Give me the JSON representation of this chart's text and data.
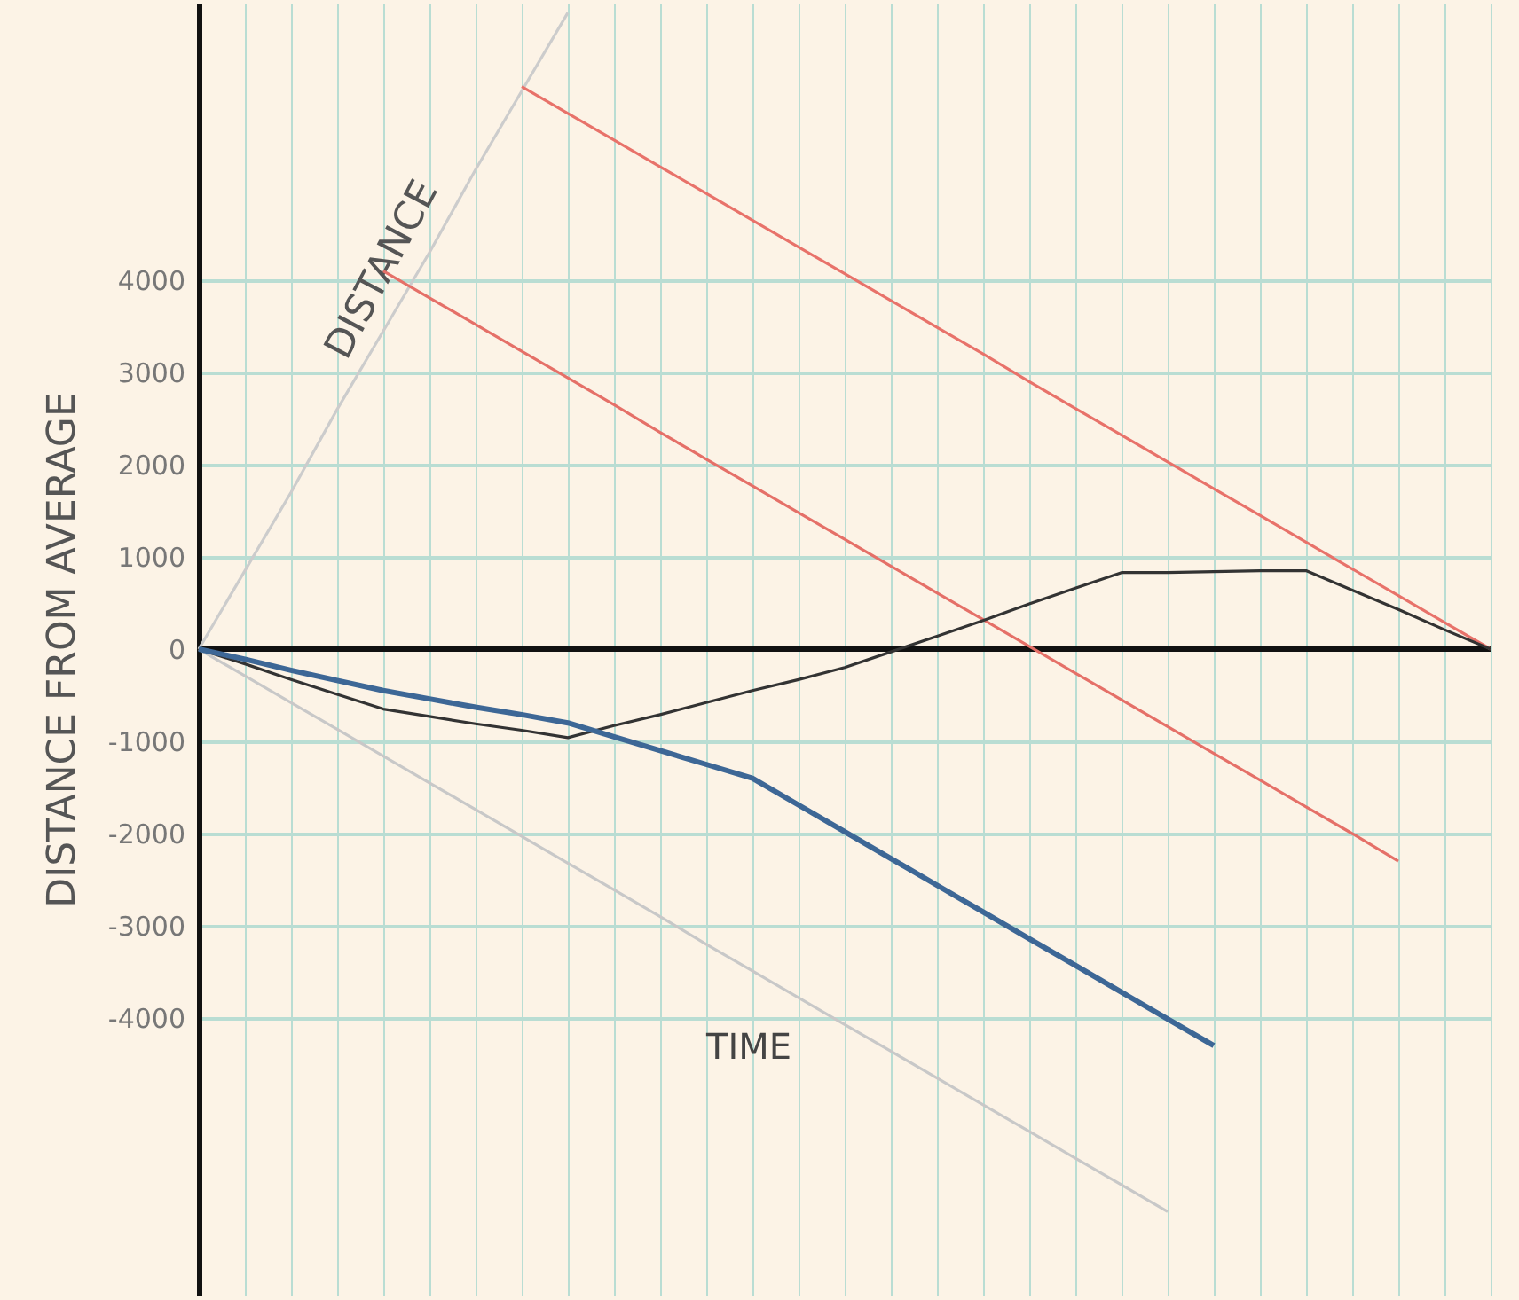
{
  "chart_data": {
    "type": "line",
    "xlabel": "TIME",
    "ylabel": "DISTANCE FROM AVERAGE",
    "categories": [
      null,
      null,
      null,
      null,
      null,
      null,
      null,
      null,
      null,
      null,
      null,
      null,
      null,
      null,
      null,
      null,
      null,
      null,
      null,
      null,
      null,
      null,
      null,
      null,
      null,
      null,
      null,
      null,
      null
    ],
    "ylim": [
      -7000,
      7000
    ],
    "yticks": [
      -4000,
      -3000,
      -2000,
      -1000,
      0,
      1000,
      2000,
      3000,
      4000
    ],
    "grid": true,
    "ref_lines": [
      {
        "axis": "y",
        "value": 0,
        "color": "#111111"
      }
    ],
    "series": [
      {
        "name": "DISTANCE",
        "color": "#cccccc",
        "values": [
          0,
          850,
          1700,
          2600,
          3450,
          4300,
          5200,
          6050,
          6900,
          null,
          null,
          null,
          null,
          null,
          null,
          null,
          null,
          null,
          null,
          null,
          null,
          null,
          null,
          null,
          null,
          null,
          null,
          null,
          null
        ]
      },
      {
        "color": "#c8c8c8",
        "values": [
          0,
          -290,
          -580,
          -870,
          -1160,
          -1450,
          -1740,
          -2030,
          -2320,
          -2610,
          -2900,
          -3200,
          -3490,
          -3780,
          -4070,
          -4360,
          -4650,
          -4940,
          -5230,
          -5520,
          -5810,
          -6100,
          null,
          null,
          null,
          null,
          null,
          null,
          null
        ]
      },
      {
        "color": "#e8726a",
        "values": [
          null,
          null,
          null,
          null,
          null,
          null,
          null,
          6100,
          5810,
          5520,
          5230,
          4940,
          4650,
          4360,
          4070,
          3780,
          3490,
          3200,
          2900,
          2610,
          2320,
          2030,
          1740,
          1450,
          1160,
          870,
          580,
          290,
          0
        ]
      },
      {
        "color": "#e57068",
        "values": [
          null,
          null,
          null,
          null,
          4100,
          3810,
          3520,
          3230,
          2940,
          2650,
          2350,
          2060,
          1770,
          1480,
          1190,
          900,
          610,
          320,
          30,
          -260,
          -550,
          -840,
          -1130,
          -1420,
          -1710,
          -2000,
          -2300,
          null,
          null
        ]
      },
      {
        "color": "#333333",
        "values": [
          0,
          -160,
          -330,
          -490,
          -650,
          -730,
          -810,
          -880,
          -960,
          -830,
          -710,
          -580,
          -450,
          -330,
          -200,
          -30,
          140,
          310,
          490,
          660,
          830,
          830,
          840,
          850,
          850,
          640,
          430,
          210,
          0
        ]
      },
      {
        "color": "#3d6796",
        "values": [
          0,
          -110,
          -230,
          -340,
          -450,
          -540,
          -630,
          -710,
          -800,
          -950,
          -1100,
          -1250,
          -1400,
          -1690,
          -1980,
          -2270,
          -2560,
          -2850,
          -3140,
          -3430,
          -3720,
          -4010,
          -4300,
          null,
          null,
          null,
          null,
          null,
          null
        ]
      }
    ]
  }
}
